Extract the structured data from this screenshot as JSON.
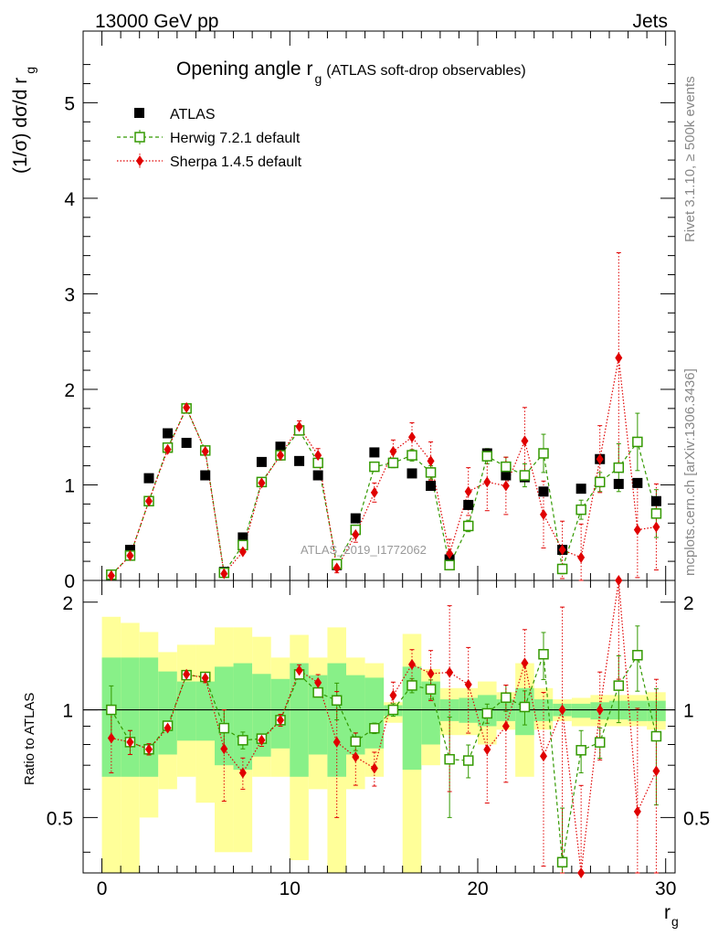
{
  "header": {
    "left": "13000 GeV pp",
    "right": "Jets"
  },
  "side_labels": {
    "rivet": "Rivet 3.1.10, ≥ 500k events",
    "mcplots": "mcplots.cern.ch [arXiv:1306.3436]"
  },
  "watermark": "ATLAS_2019_I1772062",
  "colors": {
    "atlas": "#000000",
    "herwig": "#339900",
    "sherpa": "#e00000",
    "band_inner": "#88f088",
    "band_outer": "#ffff99"
  },
  "chart_data": {
    "type": "scatter",
    "title_main": "Opening angle r",
    "title_sub": "g",
    "title_tail": "(ATLAS soft-drop observables)",
    "ylabel_main": "(1/σ) dσ/d r",
    "ylabel_sub": "g",
    "xlabel": "r",
    "xlabel_sub": "g",
    "ratio_ylabel": "Ratio to ATLAS",
    "xlim": [
      -1,
      30.5
    ],
    "ylim": [
      0,
      5.75
    ],
    "ratio_ylim": [
      0.35,
      2.3
    ],
    "x_ticks": [
      0,
      10,
      20,
      30
    ],
    "y_ticks": [
      0,
      1,
      2,
      3,
      4,
      5
    ],
    "ratio_ticks": [
      0.5,
      1,
      2
    ],
    "legend": [
      "ATLAS",
      "Herwig 7.2.1 default",
      "Sherpa 1.4.5 default"
    ],
    "x": [
      0.5,
      1.5,
      2.5,
      3.5,
      4.5,
      5.5,
      6.5,
      7.5,
      8.5,
      9.5,
      10.5,
      11.5,
      12.5,
      13.5,
      14.5,
      15.5,
      16.5,
      17.5,
      18.5,
      19.5,
      20.5,
      21.5,
      22.5,
      23.5,
      24.5,
      25.5,
      26.5,
      27.5,
      28.5,
      29.5
    ],
    "series": [
      {
        "name": "ATLAS",
        "values": [
          0.06,
          0.32,
          1.07,
          1.54,
          1.44,
          1.1,
          0.09,
          0.45,
          1.24,
          1.4,
          1.25,
          1.1,
          0.16,
          0.65,
          1.34,
          1.23,
          1.12,
          0.99,
          0.22,
          0.79,
          1.33,
          1.1,
          1.08,
          0.93,
          0.32,
          0.96,
          1.27,
          1.01,
          1.02,
          0.83
        ],
        "ratio_band_inner": [
          [
            0.65,
            1.4
          ],
          [
            0.65,
            1.4
          ],
          [
            0.65,
            1.4
          ],
          [
            0.75,
            1.28
          ],
          [
            0.82,
            1.2
          ],
          [
            0.82,
            1.2
          ],
          [
            0.7,
            1.32
          ],
          [
            0.68,
            1.35
          ],
          [
            0.74,
            1.26
          ],
          [
            0.78,
            1.22
          ],
          [
            0.65,
            1.35
          ],
          [
            0.75,
            1.25
          ],
          [
            0.65,
            1.35
          ],
          [
            0.75,
            1.25
          ],
          [
            0.78,
            1.23
          ],
          [
            0.96,
            1.03
          ],
          [
            0.68,
            1.32
          ],
          [
            0.8,
            1.2
          ],
          [
            0.93,
            1.07
          ],
          [
            0.92,
            1.08
          ],
          [
            0.9,
            1.1
          ],
          [
            0.93,
            1.07
          ],
          [
            0.85,
            1.15
          ],
          [
            0.93,
            1.07
          ],
          [
            0.96,
            1.04
          ],
          [
            0.95,
            1.04
          ],
          [
            0.94,
            1.05
          ],
          [
            0.94,
            1.06
          ],
          [
            0.93,
            1.06
          ],
          [
            0.93,
            1.06
          ]
        ],
        "ratio_band_outer": [
          [
            0.3,
            1.82
          ],
          [
            0.3,
            1.75
          ],
          [
            0.5,
            1.65
          ],
          [
            0.6,
            1.45
          ],
          [
            0.65,
            1.52
          ],
          [
            0.55,
            1.52
          ],
          [
            0.4,
            1.7
          ],
          [
            0.4,
            1.7
          ],
          [
            0.65,
            1.6
          ],
          [
            0.65,
            1.4
          ],
          [
            0.38,
            1.62
          ],
          [
            0.6,
            1.4
          ],
          [
            0.3,
            1.7
          ],
          [
            0.6,
            1.4
          ],
          [
            0.65,
            1.35
          ],
          [
            0.92,
            1.05
          ],
          [
            0.3,
            1.63
          ],
          [
            0.7,
            1.3
          ],
          [
            0.85,
            1.15
          ],
          [
            0.85,
            1.15
          ],
          [
            0.8,
            1.2
          ],
          [
            0.88,
            1.12
          ],
          [
            0.65,
            1.35
          ],
          [
            0.88,
            1.15
          ],
          [
            0.93,
            1.07
          ],
          [
            0.9,
            1.08
          ],
          [
            0.9,
            1.1
          ],
          [
            0.9,
            1.1
          ],
          [
            0.9,
            1.1
          ],
          [
            0.88,
            1.12
          ]
        ]
      },
      {
        "name": "Herwig 7.2.1 default",
        "values": [
          0.06,
          0.26,
          0.83,
          1.39,
          1.8,
          1.36,
          0.08,
          0.37,
          1.03,
          1.31,
          1.57,
          1.23,
          0.17,
          0.53,
          1.19,
          1.23,
          1.31,
          1.13,
          0.16,
          0.57,
          1.3,
          1.19,
          1.1,
          1.33,
          0.12,
          0.74,
          1.03,
          1.18,
          1.45,
          0.7
        ],
        "errors": [
          0.01,
          0.02,
          0.03,
          0.03,
          0.03,
          0.03,
          0.01,
          0.02,
          0.03,
          0.03,
          0.03,
          0.03,
          0.02,
          0.03,
          0.04,
          0.05,
          0.06,
          0.07,
          0.05,
          0.06,
          0.08,
          0.1,
          0.12,
          0.2,
          0.05,
          0.1,
          0.1,
          0.25,
          0.3,
          0.25
        ]
      },
      {
        "name": "Sherpa 1.4.5 default",
        "values": [
          0.05,
          0.26,
          0.83,
          1.37,
          1.81,
          1.35,
          0.07,
          0.3,
          1.02,
          1.31,
          1.61,
          1.31,
          0.13,
          0.48,
          0.92,
          1.35,
          1.5,
          1.25,
          0.28,
          0.93,
          1.03,
          0.99,
          1.46,
          0.69,
          0.32,
          0.24,
          1.27,
          2.33,
          0.53,
          0.56
        ],
        "errors": [
          0.01,
          0.02,
          0.03,
          0.03,
          0.03,
          0.04,
          0.02,
          0.03,
          0.04,
          0.05,
          0.06,
          0.07,
          0.05,
          0.08,
          0.1,
          0.12,
          0.15,
          0.2,
          0.15,
          0.25,
          0.3,
          0.3,
          0.35,
          0.35,
          0.3,
          0.35,
          0.35,
          1.1,
          0.5,
          0.45
        ]
      }
    ]
  }
}
